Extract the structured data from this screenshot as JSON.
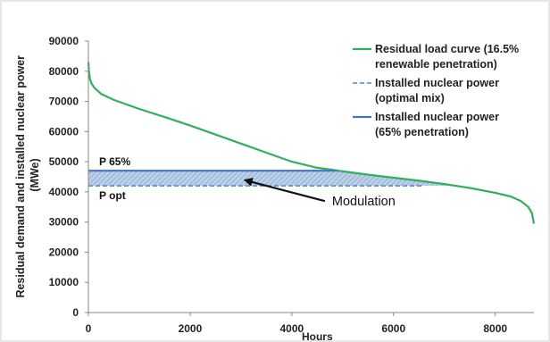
{
  "chart_data": {
    "type": "line",
    "title": "",
    "xlabel": "Hours",
    "ylabel": "Residual demand and installed nuclear power (MWe)",
    "xlim": [
      0,
      8760
    ],
    "ylim": [
      0,
      90000
    ],
    "x_ticks": [
      0,
      2000,
      4000,
      6000,
      8000
    ],
    "y_ticks": [
      0,
      10000,
      20000,
      30000,
      40000,
      50000,
      60000,
      70000,
      80000,
      90000
    ],
    "grid": "none",
    "legend_position": "top-right",
    "series": [
      {
        "name": "Residual load curve (16.5% renewable penetration)",
        "color": "#2eb15a",
        "style": "solid",
        "x": [
          0,
          10,
          30,
          60,
          120,
          250,
          500,
          1000,
          1500,
          2000,
          2500,
          3000,
          3500,
          4000,
          4500,
          4800,
          5000,
          5500,
          6000,
          6500,
          7000,
          7500,
          8000,
          8300,
          8500,
          8650,
          8720,
          8760
        ],
        "y": [
          83000,
          80000,
          77500,
          76000,
          74500,
          72500,
          70500,
          67500,
          64800,
          62000,
          59000,
          56000,
          53000,
          50000,
          48000,
          47300,
          46800,
          45700,
          44700,
          43700,
          42600,
          41300,
          39700,
          38500,
          37000,
          35000,
          33000,
          29500
        ]
      },
      {
        "name": "Installed nuclear power (optimal mix)",
        "color": "#4a86c8",
        "style": "dashed",
        "x": [
          0,
          6600
        ],
        "y": [
          42000,
          42000
        ]
      },
      {
        "name": "Installed nuclear power (65% penetration)",
        "color": "#4a72c4",
        "style": "solid",
        "x": [
          0,
          4900
        ],
        "y": [
          47000,
          47000
        ]
      }
    ],
    "annotations": {
      "p65_label": "P 65%",
      "popt_label": "P opt",
      "modulation_label": "Modulation"
    }
  },
  "legend": [
    {
      "line1": "Residual load curve (16.5%",
      "line2": "renewable penetration)"
    },
    {
      "line1": "Installed nuclear power",
      "line2": "(optimal mix)"
    },
    {
      "line1": "Installed nuclear power",
      "line2": "(65% penetration)"
    }
  ],
  "ylabel_lines": [
    "Residual demand and installed nuclear power",
    "(MWe)"
  ]
}
